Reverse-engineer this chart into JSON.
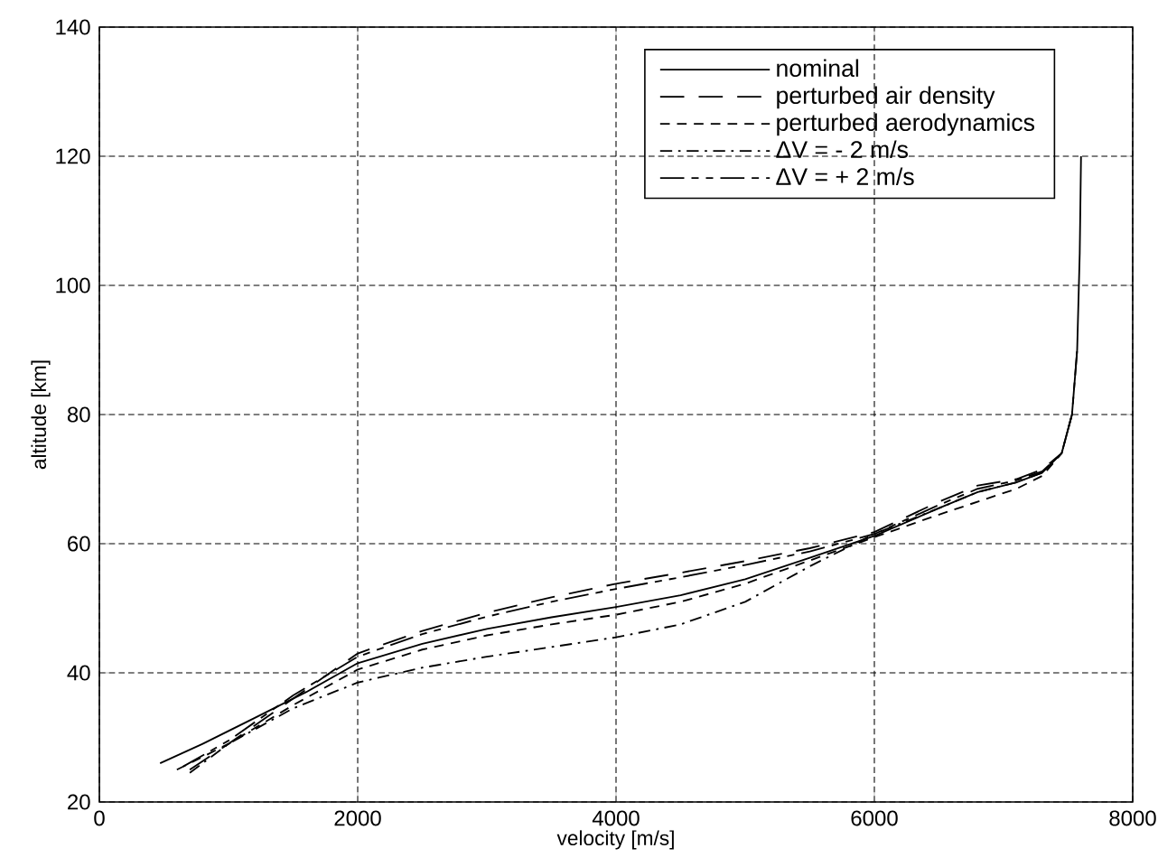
{
  "chart_data": {
    "type": "line",
    "xlabel": "velocity [m/s]",
    "ylabel": "altitude [km]",
    "xlim": [
      0,
      8000
    ],
    "ylim": [
      20,
      140
    ],
    "xticks": [
      0,
      2000,
      4000,
      6000,
      8000
    ],
    "yticks": [
      20,
      40,
      60,
      80,
      100,
      120,
      140
    ],
    "grid": true,
    "legend": "top right",
    "marker": "none",
    "series": [
      {
        "name": "nominal",
        "color": "#000000",
        "line_style": "solid",
        "x": [
          470,
          800,
          1200,
          1600,
          2000,
          2500,
          3000,
          3500,
          4000,
          4500,
          5000,
          5500,
          6000,
          6500,
          6800,
          7100,
          7300,
          7450,
          7530,
          7570,
          7590,
          7600
        ],
        "values": [
          26,
          29,
          33,
          37,
          41.5,
          44.5,
          46.8,
          48.6,
          50.2,
          52,
          54.5,
          57.8,
          61.2,
          65.5,
          68,
          69.5,
          71,
          74,
          80,
          90,
          105,
          120
        ]
      },
      {
        "name": "perturbed air density",
        "color": "#000000",
        "line_style": "long dashed",
        "x": [
          700,
          1000,
          1500,
          2000,
          2500,
          3000,
          3500,
          4000,
          4500,
          5000,
          5500,
          6000,
          6500,
          6800,
          7100,
          7300,
          7450
        ],
        "values": [
          25,
          29,
          36,
          43,
          46.5,
          49.3,
          51.7,
          53.8,
          55.5,
          57.3,
          59.3,
          61.8,
          66.5,
          69,
          70,
          71.5,
          74
        ]
      },
      {
        "name": "perturbed aerodynamics",
        "color": "#000000",
        "line_style": "dashed",
        "x": [
          600,
          1000,
          1500,
          2000,
          2500,
          3000,
          3500,
          4000,
          4500,
          5000,
          5500,
          6000,
          6500,
          6800,
          7100,
          7300,
          7450,
          7530
        ],
        "values": [
          25,
          29,
          35,
          40.5,
          43.6,
          45.8,
          47.5,
          49,
          51,
          53.8,
          57.4,
          61,
          64.5,
          66.5,
          68.5,
          70.5,
          74,
          80
        ]
      },
      {
        "name": "ΔV = - 2 m/s",
        "color": "#000000",
        "line_style": "dash dot",
        "x": [
          700,
          1000,
          1500,
          2000,
          2500,
          3000,
          3500,
          4000,
          4500,
          5000,
          5500,
          6000,
          6500,
          6800,
          7100,
          7300
        ],
        "values": [
          24.5,
          29,
          34.5,
          38.5,
          40.8,
          42.5,
          44,
          45.5,
          47.5,
          51,
          56.5,
          61.5,
          65.5,
          68,
          69.5,
          71
        ]
      },
      {
        "name": "ΔV = + 2 m/s",
        "color": "#000000",
        "line_style": "long short dashed",
        "x": [
          650,
          1000,
          1500,
          2000,
          2500,
          3000,
          3500,
          4000,
          4500,
          5000,
          5500,
          6000,
          6500,
          6800,
          7100,
          7300,
          7450,
          7530,
          7570
        ],
        "values": [
          25.5,
          29.5,
          36.5,
          42.5,
          46,
          48.7,
          51,
          53,
          54.8,
          56.7,
          58.8,
          61.5,
          66,
          68.5,
          69.8,
          71.2,
          74,
          80,
          90
        ]
      }
    ]
  }
}
